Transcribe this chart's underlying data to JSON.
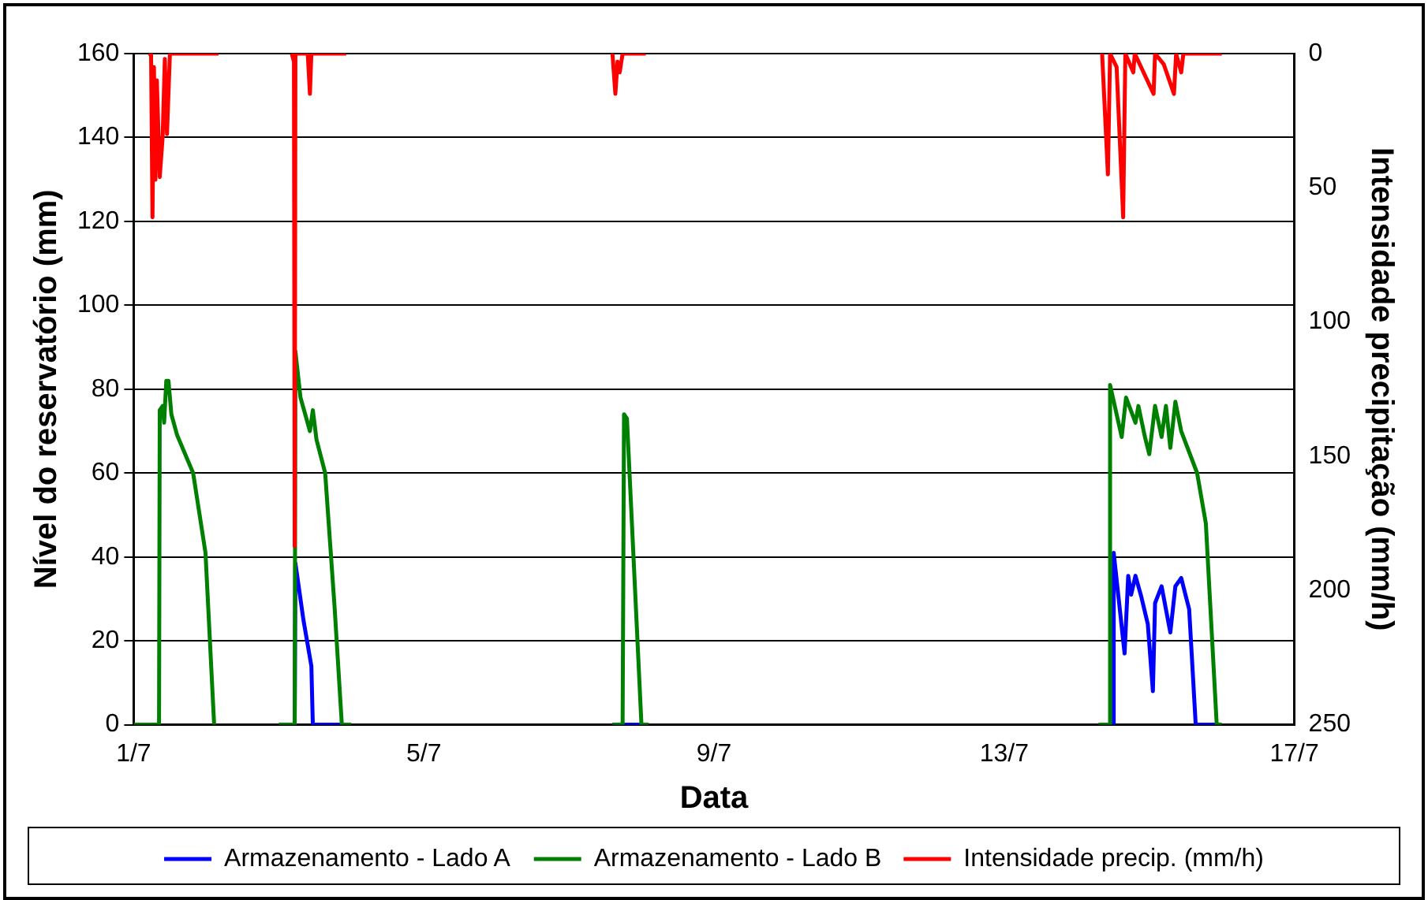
{
  "chart_data": {
    "type": "line",
    "xlabel": "Data",
    "ylabel": "Nível do reservatório (mm)",
    "y2label": "Intensidade precipitação (mm/h)",
    "xlim": [
      "--07-01",
      "--07-17"
    ],
    "xticks": [
      {
        "value": "--07-01",
        "label": "1/7"
      },
      {
        "value": "--07-05",
        "label": "5/7"
      },
      {
        "value": "--07-09",
        "label": "9/7"
      },
      {
        "value": "--07-13",
        "label": "13/7"
      },
      {
        "value": "--07-17",
        "label": "17/7"
      }
    ],
    "ylim": [
      0,
      160
    ],
    "yticks": [
      0,
      20,
      40,
      60,
      80,
      100,
      120,
      140,
      160
    ],
    "y2lim": [
      250,
      0
    ],
    "y2ticks": [
      0,
      50,
      100,
      150,
      200,
      250
    ],
    "grid": "y",
    "legend": "bottom",
    "marker": "none",
    "line_style": "solid",
    "series": [
      {
        "name": "Armazenamento - Lado A",
        "color": "#0000ff",
        "x": [
          "--07-03T04:48",
          "--07-03T05:17",
          "--07-03T05:31",
          "--07-03T08:10",
          "--07-03T10:48",
          "--07-03T11:17",
          "--07-03T20:53",
          "--07-05T00:00",
          "--07-07T14:24",
          "--07-08T01:26",
          "--07-10T00:00",
          "--07-14T09:36",
          "--07-14T12:00",
          "--07-14T12:14",
          "--07-14T15:50",
          "--07-14T17:02",
          "--07-14T18:00",
          "--07-14T19:26",
          "--07-14T21:22",
          "--07-14T23:31",
          "--07-15T01:12",
          "--07-15T01:55",
          "--07-15T04:05",
          "--07-15T05:31",
          "--07-15T06:58",
          "--07-15T08:38",
          "--07-15T10:34",
          "--07-15T13:12",
          "--07-15T15:22",
          "--07-15T22:19"
        ],
        "values": [
          0,
          0,
          38.5,
          25,
          14,
          0,
          0,
          null,
          0,
          0,
          null,
          0,
          0,
          41,
          17,
          35.5,
          31,
          35.5,
          30.5,
          24,
          8,
          29,
          33,
          27.5,
          22,
          33,
          35,
          27.5,
          0,
          0
        ]
      },
      {
        "name": "Armazenamento - Lado B",
        "color": "#008000",
        "x": [
          "--07-01T00:00",
          "--07-01T08:24",
          "--07-01T08:38",
          "--07-01T09:36",
          "--07-01T10:05",
          "--07-01T10:48",
          "--07-01T11:31",
          "--07-01T12:29",
          "--07-01T14:24",
          "--07-01T19:41",
          "--07-01T23:46",
          "--07-02T02:38",
          "--07-02T12:00",
          "--07-03T00:00",
          "--07-03T05:17",
          "--07-03T05:31",
          "--07-03T07:12",
          "--07-03T10:19",
          "--07-03T11:17",
          "--07-03T12:29",
          "--07-03T15:22",
          "--07-03T18:29",
          "--07-03T20:53",
          "--07-04T00:00",
          "--07-05T00:00",
          "--07-07T14:24",
          "--07-07T17:46",
          "--07-07T18:14",
          "--07-07T19:12",
          "--07-08T00:00",
          "--07-08T02:24",
          "--07-10T00:00",
          "--07-14T07:12",
          "--07-14T10:48",
          "--07-14T11:02",
          "--07-14T14:53",
          "--07-14T16:19",
          "--07-14T19:26",
          "--07-14T20:24",
          "--07-14T22:34",
          "--07-15T00:00",
          "--07-15T01:55",
          "--07-15T04:05",
          "--07-15T05:31",
          "--07-15T06:58",
          "--07-15T08:38",
          "--07-15T10:34",
          "--07-15T15:50",
          "--07-15T18:43",
          "--07-15T22:19",
          "--07-16T00:00"
        ],
        "values": [
          0,
          0,
          75,
          76,
          72,
          82,
          82,
          74,
          69,
          60,
          41,
          0,
          null,
          0,
          0,
          89,
          78,
          70,
          75,
          68,
          60,
          28,
          0,
          0,
          null,
          0,
          0,
          74,
          73,
          0,
          0,
          null,
          0,
          0,
          81,
          68.6,
          78,
          72,
          76,
          68.6,
          64.5,
          76,
          68.6,
          76,
          66,
          77,
          70,
          60,
          48,
          0,
          0
        ]
      },
      {
        "name": "Intensidade precip. (mm/h)",
        "color": "#ff0000",
        "axis": "y2",
        "x": [
          "--07-01T04:48",
          "--07-01T05:46",
          "--07-01T06:14",
          "--07-01T06:43",
          "--07-01T07:12",
          "--07-01T07:41",
          "--07-01T08:38",
          "--07-01T09:36",
          "--07-01T10:19",
          "--07-01T11:02",
          "--07-01T12:00",
          "--07-02T04:05",
          "--07-02T12:00",
          "--07-03T04:19",
          "--07-03T05:02",
          "--07-03T05:17",
          "--07-03T05:31",
          "--07-03T09:36",
          "--07-03T10:19",
          "--07-03T10:48",
          "--07-03T22:19",
          "--07-05T00:00",
          "--07-07T14:24",
          "--07-07T15:22",
          "--07-07T16:05",
          "--07-07T16:48",
          "--07-07T17:46",
          "--07-08T01:26",
          "--07-10T00:00",
          "--07-14T08:24",
          "--07-14T10:19",
          "--07-14T11:02",
          "--07-14T13:12",
          "--07-14T15:22",
          "--07-14T16:05",
          "--07-14T18:43",
          "--07-14T19:12",
          "--07-15T01:26",
          "--07-15T01:55",
          "--07-15T04:48",
          "--07-15T08:10",
          "--07-15T08:53",
          "--07-15T10:34",
          "--07-15T11:17",
          "--07-16T00:00"
        ],
        "values": [
          0,
          0,
          61,
          5,
          47,
          10,
          46,
          31,
          2,
          30,
          0,
          0,
          null,
          0,
          3,
          183.5,
          0,
          0,
          15,
          0,
          0,
          null,
          0,
          15,
          3,
          7,
          0,
          0,
          null,
          0,
          45,
          0,
          5,
          61,
          0,
          7,
          0,
          15,
          0,
          4,
          15,
          0,
          7,
          0,
          0
        ]
      }
    ]
  }
}
